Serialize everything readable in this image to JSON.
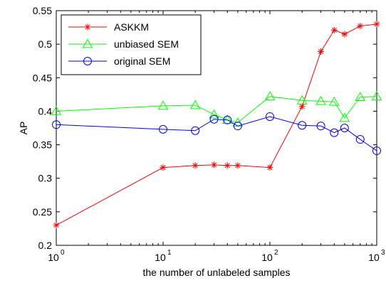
{
  "chart_data": {
    "type": "line",
    "xscale": "log",
    "xlim": [
      1,
      1000
    ],
    "ylim": [
      0.2,
      0.55
    ],
    "xlabel": "the number of unlabeled samples",
    "ylabel": "AP",
    "x_ticks": [
      {
        "value": 1,
        "base": "10",
        "exp": "0"
      },
      {
        "value": 10,
        "base": "10",
        "exp": "1"
      },
      {
        "value": 100,
        "base": "10",
        "exp": "2"
      },
      {
        "value": 1000,
        "base": "10",
        "exp": "3"
      }
    ],
    "y_ticks": [
      "0.2",
      "0.25",
      "0.3",
      "0.35",
      "0.4",
      "0.45",
      "0.5",
      "0.55"
    ],
    "legend_position": "top-left",
    "grid": false,
    "series": [
      {
        "name": "ASKKM",
        "color": "#ff0000",
        "marker": "asterisk",
        "x": [
          1,
          10,
          20,
          30,
          40,
          50,
          100,
          200,
          300,
          400,
          500,
          700,
          1000
        ],
        "y": [
          0.23,
          0.316,
          0.319,
          0.32,
          0.319,
          0.319,
          0.316,
          0.407,
          0.489,
          0.521,
          0.515,
          0.527,
          0.53
        ]
      },
      {
        "name": "unbiased SEM",
        "color": "#00ff00",
        "marker": "triangle",
        "x": [
          1,
          10,
          20,
          30,
          40,
          50,
          100,
          200,
          300,
          400,
          500,
          700,
          1000
        ],
        "y": [
          0.4,
          0.408,
          0.409,
          0.395,
          0.387,
          0.383,
          0.422,
          0.416,
          0.415,
          0.414,
          0.39,
          0.421,
          0.422
        ]
      },
      {
        "name": "original SEM",
        "color": "#0000ff",
        "marker": "circle",
        "x": [
          1,
          10,
          20,
          30,
          40,
          50,
          100,
          200,
          300,
          400,
          500,
          700,
          1000
        ],
        "y": [
          0.38,
          0.373,
          0.371,
          0.388,
          0.387,
          0.378,
          0.392,
          0.379,
          0.378,
          0.368,
          0.375,
          0.358,
          0.341
        ]
      }
    ]
  }
}
